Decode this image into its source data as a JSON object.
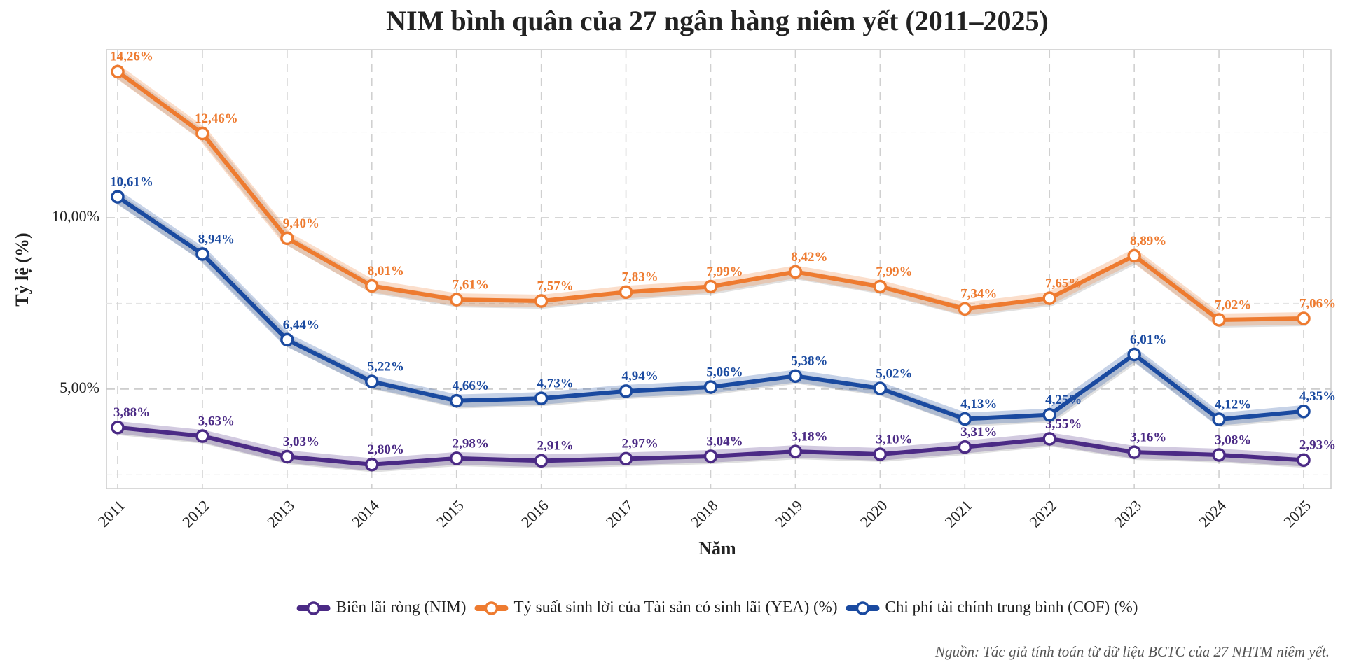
{
  "chart_data": {
    "type": "line",
    "title": "NIM bình quân của 27 ngân hàng niêm yết (2011–2025)",
    "x_label": "Năm",
    "y_label": "Tỷ lệ (%)",
    "source": "Nguồn: Tác giả tính toán từ dữ liệu BCTC của 27 NHTM niêm yết.",
    "categories": [
      "2011",
      "2012",
      "2013",
      "2014",
      "2015",
      "2016",
      "2017",
      "2018",
      "2019",
      "2020",
      "2021",
      "2022",
      "2023",
      "2024",
      "2025"
    ],
    "ylim": [
      2.1,
      14.9
    ],
    "yticks": [
      {
        "value": 5,
        "label": "5,00%"
      },
      {
        "value": 10,
        "label": "10,00%"
      }
    ],
    "y_minor_ticks": [
      2.5,
      7.5,
      12.5
    ],
    "grid": true,
    "legend": "bottom",
    "series": [
      {
        "name": "Biên lãi ròng (NIM)",
        "color": "#4b2a85",
        "values": [
          3.88,
          3.63,
          3.03,
          2.8,
          2.98,
          2.91,
          2.97,
          3.04,
          3.18,
          3.1,
          3.31,
          3.55,
          3.16,
          3.08,
          2.93
        ],
        "value_labels": [
          "3,88%",
          "3,63%",
          "3,03%",
          "2,80%",
          "2,98%",
          "2,91%",
          "2,97%",
          "3,04%",
          "3,18%",
          "3,10%",
          "3,31%",
          "3,55%",
          "3,16%",
          "3,08%",
          "2,93%"
        ]
      },
      {
        "name": "Tỷ suất sinh lời của Tài sản có sinh lãi (YEA) (%)",
        "color": "#ee7b30",
        "values": [
          14.26,
          12.46,
          9.4,
          8.01,
          7.61,
          7.57,
          7.83,
          7.99,
          8.42,
          7.99,
          7.34,
          7.65,
          8.89,
          7.02,
          7.06
        ],
        "value_labels": [
          "14,26%",
          "12,46%",
          "9,40%",
          "8,01%",
          "7,61%",
          "7,57%",
          "7,83%",
          "7,99%",
          "8,42%",
          "7,99%",
          "7,34%",
          "7,65%",
          "8,89%",
          "7,02%",
          "7,06%"
        ]
      },
      {
        "name": "Chi phí tài chính trung bình (COF) (%)",
        "color": "#1a4aa0",
        "values": [
          10.61,
          8.94,
          6.44,
          5.22,
          4.66,
          4.73,
          4.94,
          5.06,
          5.38,
          5.02,
          4.13,
          4.25,
          6.01,
          4.12,
          4.35
        ],
        "value_labels": [
          "10,61%",
          "8,94%",
          "6,44%",
          "5,22%",
          "4,66%",
          "4,73%",
          "4,94%",
          "5,06%",
          "5,38%",
          "5,02%",
          "4,13%",
          "4,25%",
          "6,01%",
          "4,12%",
          "4,35%"
        ]
      }
    ]
  }
}
